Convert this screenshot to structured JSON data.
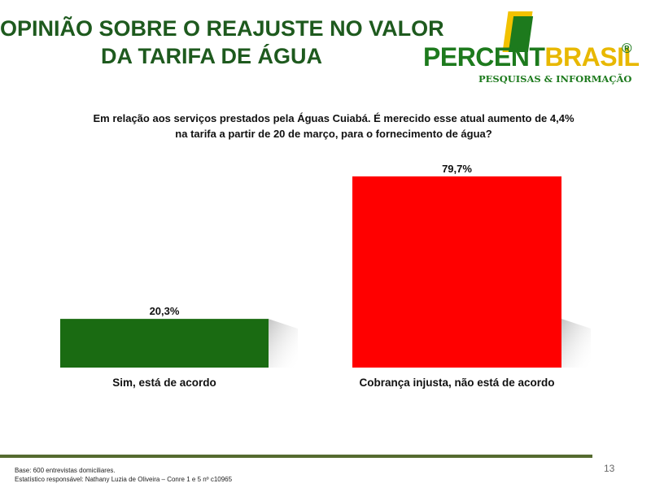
{
  "title": {
    "line1": "OPINIÃO SOBRE O REAJUSTE NO VALOR",
    "line2": "DA TARIFA DE ÁGUA"
  },
  "logo": {
    "word_main": "PERCENT",
    "word_accent": "BRASIL",
    "registered": "®",
    "tagline": "PESQUISAS & INFORMAÇÃO"
  },
  "question": {
    "line1": "Em relação aos serviços prestados pela Águas Cuiabá. É merecido esse atual aumento de 4,4%",
    "line2": "na tarifa a partir de 20 de março, para o fornecimento de água?"
  },
  "chart_data": {
    "type": "bar",
    "categories": [
      "Sim, está de acordo",
      "Cobrança injusta, não está de acordo"
    ],
    "values": [
      20.3,
      79.7
    ],
    "data_labels": [
      "20,3%",
      "79,7%"
    ],
    "colors": [
      "#1a6b12",
      "#ff0000"
    ],
    "ylim": [
      0,
      80
    ],
    "grid": false,
    "legend": "none"
  },
  "footer": {
    "base": "Base: 600 entrevistas domiciliares.",
    "statistician": "Estatístico responsável: Nathany Luzia de Oliveira – Conre 1 e 5 nº c10965",
    "page_number": "13"
  },
  "colors": {
    "title": "#1e5a1e",
    "footer_rule": "#556b2f",
    "logo_green": "#1d7a1d",
    "logo_yellow": "#e8b800"
  }
}
